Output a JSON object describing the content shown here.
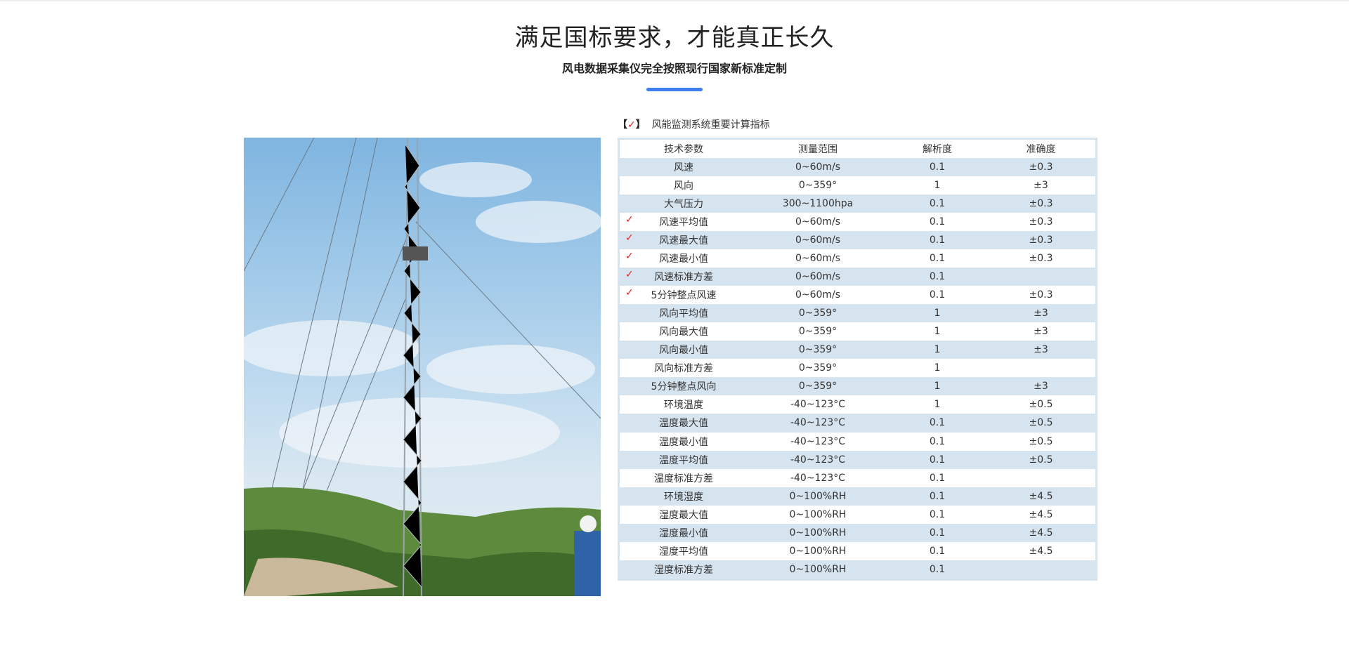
{
  "header": {
    "title": "满足国标要求，才能真正长久",
    "subtitle": "风电数据采集仪完全按照现行国家新标准定制",
    "accent_color": "#3f7ff0"
  },
  "caption": {
    "open": "【",
    "check": "✓",
    "close": "】",
    "text": "风能监测系统重要计算指标"
  },
  "table": {
    "columns": [
      "技术参数",
      "测量范围",
      "解析度",
      "准确度"
    ],
    "rows": [
      {
        "checked": false,
        "cells": [
          "风速",
          "0~60m/s",
          "0.1",
          "±0.3"
        ]
      },
      {
        "checked": false,
        "cells": [
          "风向",
          "0~359°",
          "1",
          "±3"
        ]
      },
      {
        "checked": false,
        "cells": [
          "大气压力",
          "300~1100hpa",
          "0.1",
          "±0.3"
        ]
      },
      {
        "checked": true,
        "cells": [
          "风速平均值",
          "0~60m/s",
          "0.1",
          "±0.3"
        ]
      },
      {
        "checked": true,
        "cells": [
          "风速最大值",
          "0~60m/s",
          "0.1",
          "±0.3"
        ]
      },
      {
        "checked": true,
        "cells": [
          "风速最小值",
          "0~60m/s",
          "0.1",
          "±0.3"
        ]
      },
      {
        "checked": true,
        "cells": [
          "风速标准方差",
          "0~60m/s",
          "0.1",
          ""
        ]
      },
      {
        "checked": true,
        "cells": [
          "5分钟整点风速",
          "0~60m/s",
          "0.1",
          "±0.3"
        ]
      },
      {
        "checked": false,
        "cells": [
          "风向平均值",
          "0~359°",
          "1",
          "±3"
        ]
      },
      {
        "checked": false,
        "cells": [
          "风向最大值",
          "0~359°",
          "1",
          "±3"
        ]
      },
      {
        "checked": false,
        "cells": [
          "风向最小值",
          "0~359°",
          "1",
          "±3"
        ]
      },
      {
        "checked": false,
        "cells": [
          "风向标准方差",
          "0~359°",
          "1",
          ""
        ]
      },
      {
        "checked": false,
        "cells": [
          "5分钟整点风向",
          "0~359°",
          "1",
          "±3"
        ]
      },
      {
        "checked": false,
        "cells": [
          "环境温度",
          "-40~123°C",
          "1",
          "±0.5"
        ]
      },
      {
        "checked": false,
        "cells": [
          "温度最大值",
          "-40~123°C",
          "0.1",
          "±0.5"
        ]
      },
      {
        "checked": false,
        "cells": [
          "温度最小值",
          "-40~123°C",
          "0.1",
          "±0.5"
        ]
      },
      {
        "checked": false,
        "cells": [
          "温度平均值",
          "-40~123°C",
          "0.1",
          "±0.5"
        ]
      },
      {
        "checked": false,
        "cells": [
          "温度标准方差",
          "-40~123°C",
          "0.1",
          ""
        ]
      },
      {
        "checked": false,
        "cells": [
          "环境湿度",
          "0~100%RH",
          "0.1",
          "±4.5"
        ]
      },
      {
        "checked": false,
        "cells": [
          "湿度最大值",
          "0~100%RH",
          "0.1",
          "±4.5"
        ]
      },
      {
        "checked": false,
        "cells": [
          "湿度最小值",
          "0~100%RH",
          "0.1",
          "±4.5"
        ]
      },
      {
        "checked": false,
        "cells": [
          "湿度平均值",
          "0~100%RH",
          "0.1",
          "±4.5"
        ]
      },
      {
        "checked": false,
        "cells": [
          "湿度标准方差",
          "0~100%RH",
          "0.1",
          ""
        ]
      }
    ],
    "row_alt_color": "#d6e4ef",
    "check_color": "#e02020"
  }
}
